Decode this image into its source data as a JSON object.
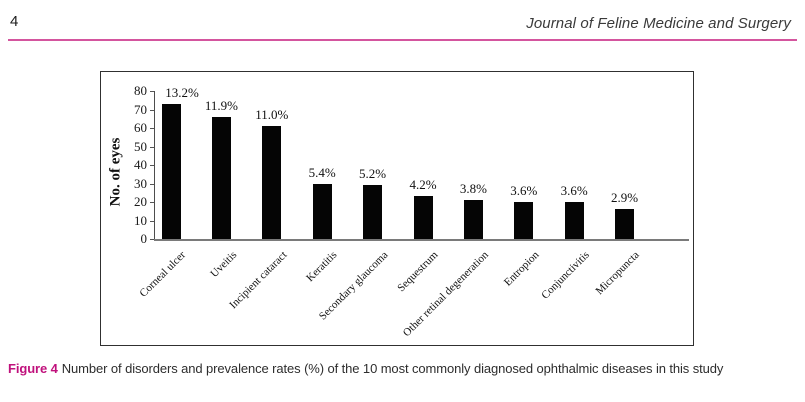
{
  "header": {
    "page_number": "4",
    "journal_title": "Journal of Feline Medicine and Surgery"
  },
  "figure": {
    "label": "Figure 4",
    "caption": "Number of disorders and prevalence rates (%) of the 10 most commonly diagnosed ophthalmic diseases in this study"
  },
  "chart_data": {
    "type": "bar",
    "title": "",
    "xlabel": "",
    "ylabel": "No. of eyes",
    "ylim": [
      0,
      80
    ],
    "yticks": [
      0,
      10,
      20,
      30,
      40,
      50,
      60,
      70,
      80
    ],
    "grid": false,
    "legend": false,
    "bar_color": "#050505",
    "categories": [
      "Corneal ulcer",
      "Uveitis",
      "Incipient cataract",
      "Keratitis",
      "Secondary glaucoma",
      "Sequestrum",
      "Other retinal degeneration",
      "Entropion",
      "Conjunctivitis",
      "Micropuncta"
    ],
    "values": [
      73,
      66,
      61,
      30,
      29,
      23,
      21,
      20,
      20,
      16
    ],
    "data_labels": [
      "13.2%",
      "11.9%",
      "11.0%",
      "5.4%",
      "5.2%",
      "4.2%",
      "3.8%",
      "3.6%",
      "3.6%",
      "2.9%"
    ]
  },
  "colors": {
    "header_rule_pink": "#d4559e",
    "figure_label_magenta": "#c0117c",
    "bar_black": "#050505"
  }
}
